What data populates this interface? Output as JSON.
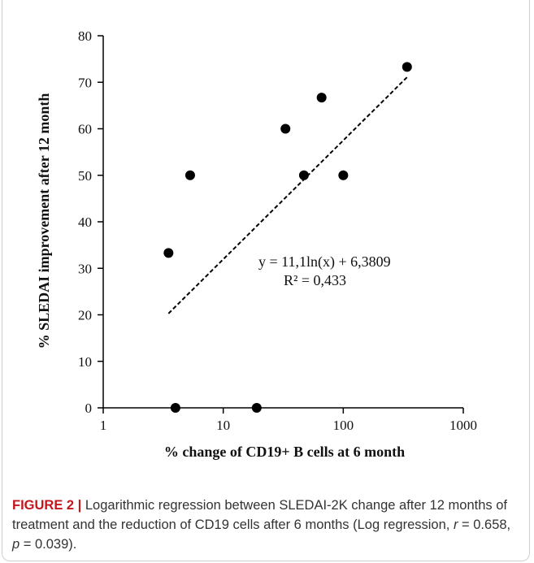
{
  "chart_data": {
    "type": "scatter",
    "xlabel": "% change of CD19+ B cells at 6 month",
    "ylabel": "% SLEDAI improvement  after 12 month",
    "xscale": "log",
    "xlim": [
      1,
      1000
    ],
    "ylim": [
      0,
      80
    ],
    "xticks": [
      "1",
      "10",
      "100",
      "1000"
    ],
    "yticks": [
      "0",
      "10",
      "20",
      "30",
      "40",
      "50",
      "60",
      "70",
      "80"
    ],
    "points": [
      {
        "x": 3.5,
        "y": 33.3
      },
      {
        "x": 4.0,
        "y": 0
      },
      {
        "x": 5.3,
        "y": 50
      },
      {
        "x": 19,
        "y": 0
      },
      {
        "x": 33,
        "y": 60
      },
      {
        "x": 47,
        "y": 50
      },
      {
        "x": 66,
        "y": 66.7
      },
      {
        "x": 100,
        "y": 50
      },
      {
        "x": 340,
        "y": 73.3
      }
    ],
    "trendline": {
      "type": "logarithmic",
      "style": "dashed",
      "x_range": [
        3.5,
        340
      ],
      "a": 11.1,
      "b": 6.3809
    },
    "equation_lines": [
      "y = 11,1ln(x)  + 6,3809",
      "R² = 0,433"
    ],
    "grid": false,
    "legend": "none"
  },
  "caption": {
    "label": "FIGURE 2 |",
    "text": " Logarithmic regression between SLEDAI-2K change after 12 months of treatment and the reduction of CD19 cells after 6 months (Log regression, ",
    "r_label": "r",
    "r_value": " = 0.658, ",
    "p_label": "p",
    "p_value": " = 0.039)."
  },
  "colors": {
    "caption_label": "#c4161c",
    "marker": "#000000",
    "text": "#333333"
  }
}
